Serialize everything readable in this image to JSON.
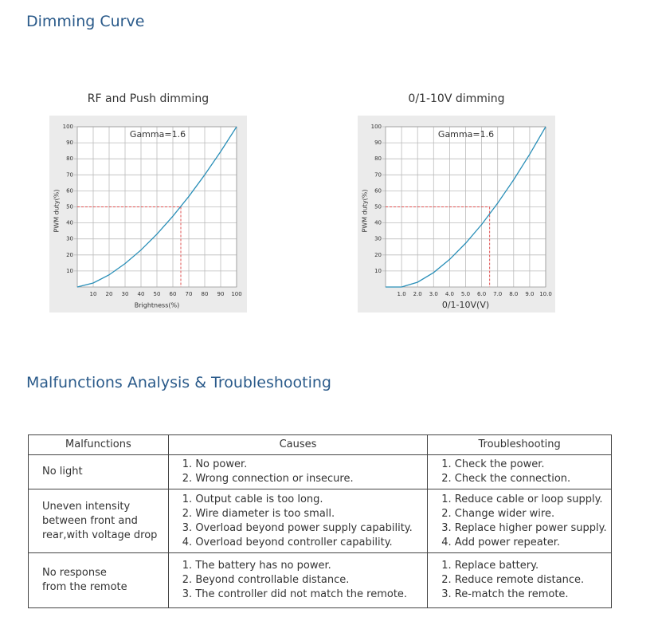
{
  "header": {
    "title": "Dimming Curve"
  },
  "chart_data": [
    {
      "type": "line",
      "title": "RF and Push dimming",
      "xlabel": "Brightness(%)",
      "ylabel": "PWM duty(%)",
      "annotation": "Gamma=1.6",
      "x": [
        0,
        10,
        20,
        30,
        40,
        50,
        60,
        70,
        80,
        90,
        100
      ],
      "values": [
        0,
        2.5,
        7.6,
        14.6,
        23.1,
        33.0,
        44.2,
        56.5,
        70.0,
        84.5,
        100
      ],
      "color": "#2a8fb8",
      "xlim": [
        0,
        100
      ],
      "ylim": [
        0,
        100
      ],
      "xticks": [
        10,
        20,
        30,
        40,
        50,
        60,
        70,
        80,
        90,
        100
      ],
      "yticks": [
        10,
        20,
        30,
        40,
        50,
        60,
        70,
        80,
        90,
        100
      ],
      "grid": true,
      "reference": {
        "x": 65,
        "y": 50,
        "color": "#e05050"
      }
    },
    {
      "type": "line",
      "title": "0/1-10V dimming",
      "xlabel": "0/1-10V(V)",
      "ylabel": "PWM duty(%)",
      "annotation": "Gamma=1.6",
      "x": [
        0,
        1,
        2,
        3,
        4,
        5,
        6,
        7,
        8,
        9,
        10
      ],
      "values": [
        0,
        0,
        3.0,
        9.0,
        17.2,
        27.3,
        39.0,
        52.3,
        66.9,
        82.8,
        100
      ],
      "color": "#2a8fb8",
      "xlim": [
        0,
        10
      ],
      "ylim": [
        0,
        100
      ],
      "xticks": [
        {
          "value": 1,
          "label": "1.0"
        },
        {
          "value": 2,
          "label": "2.0"
        },
        {
          "value": 3,
          "label": "3.0"
        },
        {
          "value": 4,
          "label": "4.0"
        },
        {
          "value": 5,
          "label": "5.0"
        },
        {
          "value": 6,
          "label": "6.0"
        },
        {
          "value": 7,
          "label": "7.0"
        },
        {
          "value": 8,
          "label": "8.0"
        },
        {
          "value": 9,
          "label": "9.0"
        },
        {
          "value": 10,
          "label": "10.0"
        }
      ],
      "yticks": [
        10,
        20,
        30,
        40,
        50,
        60,
        70,
        80,
        90,
        100
      ],
      "grid": true,
      "reference": {
        "x": 6.5,
        "y": 50,
        "color": "#e05050"
      }
    }
  ],
  "section": {
    "title": "Malfunctions Analysis & Troubleshooting"
  },
  "table": {
    "header": [
      "Malfunctions",
      "Causes",
      "Troubleshooting"
    ],
    "rows": [
      [
        [
          "No light"
        ],
        [
          "1. No power.",
          "2. Wrong connection or insecure."
        ],
        [
          "1. Check the power.",
          "2. Check the connection."
        ]
      ],
      [
        [
          "Uneven intensity",
          "between front and",
          "rear,with voltage drop"
        ],
        [
          "1. Output cable is too long.",
          "2. Wire diameter is too small.",
          "3. Overload beyond power supply capability.",
          "4. Overload beyond controller capability."
        ],
        [
          "1. Reduce cable or loop supply.",
          "2. Change wider wire.",
          "3. Replace higher power supply.",
          "4. Add power repeater."
        ]
      ],
      [
        [
          "No response",
          "from the remote"
        ],
        [
          "1. The battery has no power.",
          "2. Beyond controllable distance.",
          "3. The controller did not match the remote."
        ],
        [
          "1. Replace battery.",
          "2. Reduce remote distance.",
          "3. Re-match the remote."
        ]
      ]
    ]
  }
}
